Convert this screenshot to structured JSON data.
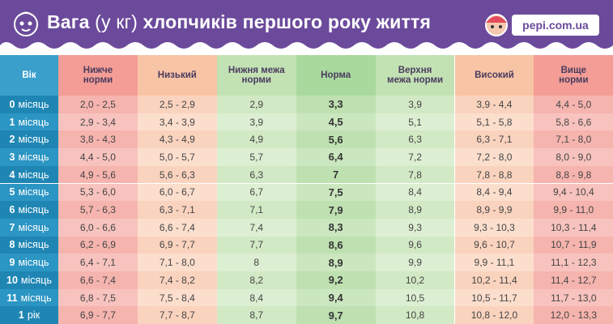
{
  "header": {
    "title": {
      "start": "Вага",
      "unit": "(у кг)",
      "end": "хлопчиків першого року життя"
    },
    "logo": "pepi.com.ua"
  },
  "table": {
    "columns": [
      "Вік",
      "Нижче норми",
      "Низький",
      "Нижня межа норми",
      "Норма",
      "Верхня межа норми",
      "Високий",
      "Вище норми"
    ],
    "rows": [
      [
        {
          "num": "0",
          "unit": "місяць"
        },
        "2,0 - 2,5",
        "2,5 - 2,9",
        "2,9",
        "3,3",
        "3,9",
        "3,9 - 4,4",
        "4,4 - 5,0"
      ],
      [
        {
          "num": "1",
          "unit": "місяць"
        },
        "2,9 - 3,4",
        "3,4 - 3,9",
        "3,9",
        "4,5",
        "5,1",
        "5,1 - 5,8",
        "5,8 - 6,6"
      ],
      [
        {
          "num": "2",
          "unit": "місяць"
        },
        "3,8 - 4,3",
        "4,3 - 4,9",
        "4,9",
        "5,6",
        "6,3",
        "6,3 - 7,1",
        "7,1 - 8,0"
      ],
      [
        {
          "num": "3",
          "unit": "місяць"
        },
        "4,4 - 5,0",
        "5,0 - 5,7",
        "5,7",
        "6,4",
        "7,2",
        "7,2 - 8,0",
        "8,0 - 9,0"
      ],
      [
        {
          "num": "4",
          "unit": "місяць"
        },
        "4,9 - 5,6",
        "5,6 - 6,3",
        "6,3",
        "7",
        "7,8",
        "7,8 - 8,8",
        "8,8 - 9,8"
      ],
      [
        {
          "num": "5",
          "unit": "місяць"
        },
        "5,3 - 6,0",
        "6,0 - 6,7",
        "6,7",
        "7,5",
        "8,4",
        "8,4 - 9,4",
        "9,4 - 10,4"
      ],
      [
        {
          "num": "6",
          "unit": "місяць"
        },
        "5,7 - 6,3",
        "6,3 - 7,1",
        "7,1",
        "7,9",
        "8,9",
        "8,9 - 9,9",
        "9,9 - 11,0"
      ],
      [
        {
          "num": "7",
          "unit": "місяць"
        },
        "6,0 - 6,6",
        "6,6 - 7,4",
        "7,4",
        "8,3",
        "9,3",
        "9,3 - 10,3",
        "10,3 - 11,4"
      ],
      [
        {
          "num": "8",
          "unit": "місяць"
        },
        "6,2 - 6,9",
        "6,9 - 7,7",
        "7,7",
        "8,6",
        "9,6",
        "9,6 - 10,7",
        "10,7 - 11,9"
      ],
      [
        {
          "num": "9",
          "unit": "місяць"
        },
        "6,4 - 7,1",
        "7,1 - 8,0",
        "8",
        "8,9",
        "9,9",
        "9,9 - 11,1",
        "11,1 - 12,3"
      ],
      [
        {
          "num": "10",
          "unit": "місяць"
        },
        "6,6 - 7,4",
        "7,4 - 8,2",
        "8,2",
        "9,2",
        "10,2",
        "10,2 - 11,4",
        "11,4 - 12,7"
      ],
      [
        {
          "num": "11",
          "unit": "місяць"
        },
        "6,8 - 7,5",
        "7,5 - 8,4",
        "8,4",
        "9,4",
        "10,5",
        "10,5 - 11,7",
        "11,7 - 13,0"
      ],
      [
        {
          "num": "1",
          "unit": "рік"
        },
        "6,9 - 7,7",
        "7,7 - 8,7",
        "8,7",
        "9,7",
        "10,8",
        "10,8 - 12,0",
        "12,0 - 13,3"
      ]
    ]
  }
}
